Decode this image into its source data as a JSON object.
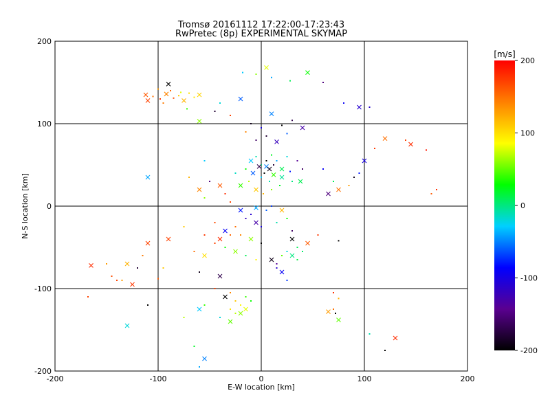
{
  "chart_data": {
    "type": "scatter",
    "title": "Tromsø 20161112 17:22:00-17:23:43",
    "subtitle": "RwPretec (8p) EXPERIMENTAL SKYMAP",
    "xlabel": "E-W location [km]",
    "ylabel": "N-S location [km]",
    "xlim": [
      -200,
      200
    ],
    "ylim": [
      -200,
      200
    ],
    "x_ticks": [
      "-200",
      "-100",
      "0",
      "100",
      "200"
    ],
    "y_ticks": [
      "-200",
      "-100",
      "0",
      "100",
      "200"
    ],
    "grid": true,
    "grid_lines": [
      -100,
      0,
      100
    ],
    "colorbar": {
      "unit_label": "[m/s]",
      "range": [
        -200,
        200
      ],
      "ticks": [
        "200",
        "100",
        "0",
        "-100",
        "-200"
      ],
      "colormap": [
        "#000000",
        "#5a0090",
        "#0000ff",
        "#00d0ff",
        "#00ff00",
        "#ffff00",
        "#ff8000",
        "#ff0000"
      ]
    },
    "markers": [
      "dot",
      "cross"
    ],
    "points": [
      [
        -112,
        135,
        160
      ],
      [
        -105,
        133,
        150
      ],
      [
        -98,
        130,
        175
      ],
      [
        -92,
        136,
        140
      ],
      [
        -85,
        131,
        165
      ],
      [
        -80,
        134,
        110
      ],
      [
        -75,
        128,
        120
      ],
      [
        -70,
        137,
        100
      ],
      [
        -65,
        132,
        95
      ],
      [
        -60,
        135,
        105
      ],
      [
        -88,
        140,
        155
      ],
      [
        -100,
        142,
        130
      ],
      [
        -110,
        128,
        170
      ],
      [
        -95,
        125,
        145
      ],
      [
        -78,
        138,
        80
      ],
      [
        -90,
        148,
        -200
      ],
      [
        -72,
        118,
        40
      ],
      [
        -40,
        125,
        -20
      ],
      [
        -20,
        130,
        -60
      ],
      [
        -18,
        162,
        -30
      ],
      [
        -5,
        160,
        60
      ],
      [
        5,
        168,
        80
      ],
      [
        10,
        156,
        -40
      ],
      [
        28,
        152,
        10
      ],
      [
        45,
        162,
        30
      ],
      [
        60,
        150,
        -150
      ],
      [
        80,
        125,
        -90
      ],
      [
        95,
        120,
        -110
      ],
      [
        -30,
        110,
        170
      ],
      [
        -45,
        115,
        -180
      ],
      [
        -60,
        103,
        60
      ],
      [
        -10,
        100,
        -190
      ],
      [
        0,
        95,
        -100
      ],
      [
        10,
        112,
        -50
      ],
      [
        20,
        98,
        -200
      ],
      [
        30,
        104,
        -170
      ],
      [
        40,
        95,
        -130
      ],
      [
        5,
        85,
        -180
      ],
      [
        -5,
        80,
        -160
      ],
      [
        15,
        78,
        -120
      ],
      [
        -15,
        90,
        140
      ],
      [
        25,
        88,
        -60
      ],
      [
        -10,
        55,
        -30
      ],
      [
        -5,
        60,
        -10
      ],
      [
        0,
        50,
        0
      ],
      [
        5,
        48,
        -50
      ],
      [
        10,
        62,
        20
      ],
      [
        15,
        55,
        -40
      ],
      [
        20,
        45,
        10
      ],
      [
        25,
        60,
        -20
      ],
      [
        -15,
        45,
        30
      ],
      [
        -8,
        40,
        -60
      ],
      [
        0,
        35,
        -30
      ],
      [
        8,
        30,
        -10
      ],
      [
        12,
        38,
        40
      ],
      [
        18,
        25,
        20
      ],
      [
        -12,
        30,
        70
      ],
      [
        -5,
        20,
        110
      ],
      [
        2,
        15,
        120
      ],
      [
        10,
        20,
        60
      ],
      [
        20,
        35,
        -5
      ],
      [
        28,
        42,
        -80
      ],
      [
        30,
        30,
        0
      ],
      [
        -20,
        25,
        40
      ],
      [
        -25,
        40,
        -15
      ],
      [
        5,
        55,
        -200
      ],
      [
        8,
        45,
        -190
      ],
      [
        3,
        40,
        -210
      ],
      [
        12,
        50,
        -180
      ],
      [
        -2,
        48,
        -170
      ],
      [
        35,
        55,
        -140
      ],
      [
        40,
        45,
        -160
      ],
      [
        38,
        30,
        10
      ],
      [
        -55,
        55,
        -30
      ],
      [
        -70,
        35,
        120
      ],
      [
        -60,
        20,
        140
      ],
      [
        -55,
        10,
        60
      ],
      [
        -50,
        30,
        -150
      ],
      [
        -40,
        25,
        160
      ],
      [
        -35,
        15,
        180
      ],
      [
        -30,
        5,
        170
      ],
      [
        -20,
        -5,
        -80
      ],
      [
        -15,
        -15,
        -120
      ],
      [
        -10,
        -10,
        -110
      ],
      [
        -5,
        -20,
        -130
      ],
      [
        0,
        -25,
        -100
      ],
      [
        -25,
        -25,
        150
      ],
      [
        -35,
        -30,
        -90
      ],
      [
        -45,
        -20,
        165
      ],
      [
        -55,
        -35,
        175
      ],
      [
        -40,
        -40,
        180
      ],
      [
        -30,
        -35,
        155
      ],
      [
        -20,
        -35,
        140
      ],
      [
        -10,
        -40,
        60
      ],
      [
        0,
        -45,
        -200
      ],
      [
        15,
        -20,
        -10
      ],
      [
        20,
        -5,
        120
      ],
      [
        10,
        0,
        -70
      ],
      [
        5,
        -5,
        -60
      ],
      [
        -5,
        -2,
        -40
      ],
      [
        25,
        -15,
        30
      ],
      [
        30,
        -30,
        -160
      ],
      [
        -90,
        -40,
        170
      ],
      [
        -75,
        -25,
        110
      ],
      [
        -65,
        -55,
        150
      ],
      [
        -55,
        -60,
        100
      ],
      [
        -45,
        -45,
        170
      ],
      [
        -35,
        -50,
        30
      ],
      [
        -25,
        -55,
        60
      ],
      [
        -15,
        -60,
        10
      ],
      [
        -5,
        -65,
        90
      ],
      [
        10,
        -65,
        -190
      ],
      [
        15,
        -70,
        -140
      ],
      [
        20,
        -60,
        50
      ],
      [
        30,
        -40,
        -210
      ],
      [
        35,
        -50,
        10
      ],
      [
        40,
        -55,
        5
      ],
      [
        30,
        -60,
        0
      ],
      [
        35,
        -65,
        15
      ],
      [
        25,
        -55,
        -20
      ],
      [
        45,
        -45,
        160
      ],
      [
        55,
        -35,
        175
      ],
      [
        75,
        -42,
        -200
      ],
      [
        20,
        -80,
        -90
      ],
      [
        15,
        -75,
        -110
      ],
      [
        25,
        -90,
        -70
      ],
      [
        -110,
        -45,
        170
      ],
      [
        -115,
        -60,
        145
      ],
      [
        -120,
        -75,
        -180
      ],
      [
        -130,
        -70,
        120
      ],
      [
        -145,
        -85,
        165
      ],
      [
        -135,
        -90,
        130
      ],
      [
        -125,
        -95,
        175
      ],
      [
        -100,
        -88,
        160
      ],
      [
        -95,
        -75,
        110
      ],
      [
        -165,
        -72,
        180
      ],
      [
        -150,
        -70,
        130
      ],
      [
        -110,
        -120,
        -200
      ],
      [
        -130,
        -145,
        -20
      ],
      [
        -168,
        -110,
        170
      ],
      [
        -60,
        -80,
        -190
      ],
      [
        -40,
        -85,
        -170
      ],
      [
        -45,
        -100,
        170
      ],
      [
        -30,
        -105,
        140
      ],
      [
        -35,
        -110,
        -200
      ],
      [
        -25,
        -115,
        110
      ],
      [
        -20,
        -120,
        90
      ],
      [
        -15,
        -125,
        80
      ],
      [
        -25,
        -130,
        70
      ],
      [
        -30,
        -125,
        100
      ],
      [
        -20,
        -130,
        60
      ],
      [
        -15,
        -110,
        40
      ],
      [
        -10,
        -115,
        30
      ],
      [
        -30,
        -140,
        50
      ],
      [
        -40,
        -135,
        -20
      ],
      [
        -55,
        -120,
        40
      ],
      [
        -60,
        -125,
        -30
      ],
      [
        -75,
        -135,
        70
      ],
      [
        -65,
        -170,
        20
      ],
      [
        -55,
        -185,
        -50
      ],
      [
        -60,
        -195,
        -40
      ],
      [
        70,
        -125,
        150
      ],
      [
        65,
        -128,
        130
      ],
      [
        75,
        -112,
        120
      ],
      [
        72,
        -130,
        -200
      ],
      [
        75,
        -138,
        50
      ],
      [
        70,
        -105,
        180
      ],
      [
        120,
        -175,
        -210
      ],
      [
        130,
        -160,
        180
      ],
      [
        105,
        -155,
        -10
      ],
      [
        140,
        80,
        170
      ],
      [
        145,
        75,
        180
      ],
      [
        160,
        68,
        190
      ],
      [
        110,
        70,
        175
      ],
      [
        120,
        82,
        150
      ],
      [
        165,
        15,
        160
      ],
      [
        170,
        20,
        180
      ],
      [
        100,
        55,
        -100
      ],
      [
        95,
        40,
        -80
      ],
      [
        85,
        25,
        130
      ],
      [
        75,
        20,
        150
      ],
      [
        70,
        30,
        10
      ],
      [
        90,
        35,
        -190
      ],
      [
        65,
        15,
        -150
      ],
      [
        60,
        45,
        -90
      ],
      [
        105,
        120,
        -110
      ],
      [
        -110,
        35,
        -40
      ],
      [
        -140,
        -90,
        170
      ]
    ]
  }
}
